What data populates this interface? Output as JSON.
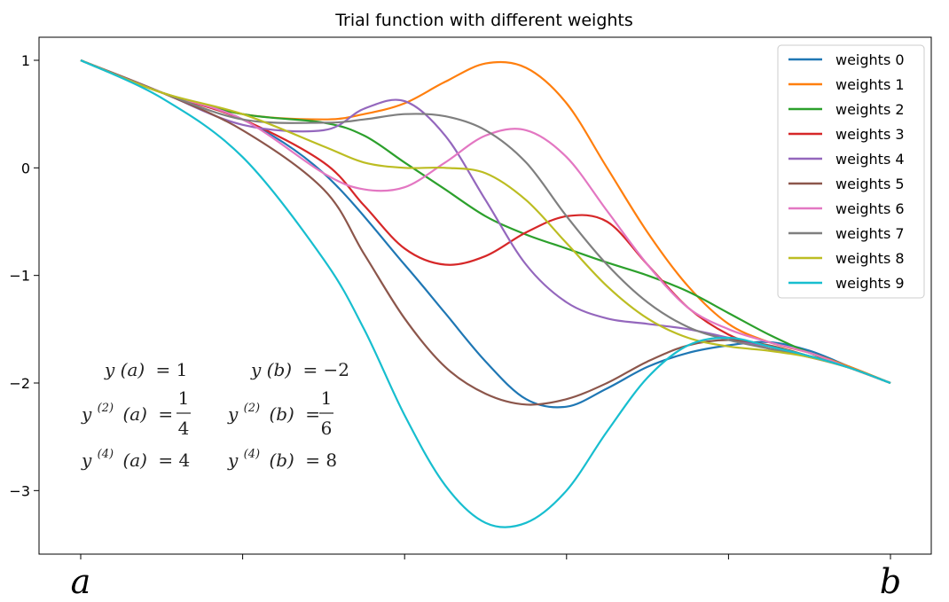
{
  "chart_data": {
    "type": "line",
    "title": "Trial function with different weights",
    "xlabel": "",
    "ylabel": "",
    "xlim": [
      0,
      1
    ],
    "ylim": [
      -3.6,
      1.2
    ],
    "y_ticks": [
      1,
      0,
      -1,
      -2,
      -3
    ],
    "y_tick_labels": [
      "1",
      "0",
      "−1",
      "−2",
      "−3"
    ],
    "x_ticks": [
      0,
      0.2,
      0.4,
      0.6,
      0.8,
      1.0
    ],
    "x_tick_labels": [
      "a",
      "",
      "",
      "",
      "",
      "b"
    ],
    "legend_position": "top-right",
    "series": [
      {
        "name": "weights 0",
        "color": "#1f77b4",
        "x": [
          0,
          0.1,
          0.2,
          0.3,
          0.4,
          0.45,
          0.5,
          0.55,
          0.6,
          0.65,
          0.7,
          0.75,
          0.8,
          0.85,
          0.9,
          0.95,
          1.0
        ],
        "y": [
          1,
          0.7,
          0.45,
          -0.05,
          -0.9,
          -1.35,
          -1.8,
          -2.15,
          -2.22,
          -2.05,
          -1.85,
          -1.72,
          -1.65,
          -1.62,
          -1.7,
          -1.85,
          -2
        ]
      },
      {
        "name": "weights 1",
        "color": "#ff7f0e",
        "x": [
          0,
          0.1,
          0.2,
          0.3,
          0.35,
          0.4,
          0.45,
          0.5,
          0.55,
          0.6,
          0.65,
          0.7,
          0.75,
          0.8,
          0.85,
          0.9,
          0.95,
          1.0
        ],
        "y": [
          1,
          0.7,
          0.5,
          0.45,
          0.5,
          0.6,
          0.8,
          0.97,
          0.93,
          0.6,
          0.0,
          -0.6,
          -1.1,
          -1.45,
          -1.62,
          -1.72,
          -1.85,
          -2
        ]
      },
      {
        "name": "weights 2",
        "color": "#2ca02c",
        "x": [
          0,
          0.1,
          0.2,
          0.3,
          0.35,
          0.4,
          0.45,
          0.5,
          0.55,
          0.6,
          0.65,
          0.7,
          0.75,
          0.8,
          0.85,
          0.9,
          0.95,
          1.0
        ],
        "y": [
          1,
          0.7,
          0.5,
          0.42,
          0.3,
          0.05,
          -0.2,
          -0.45,
          -0.62,
          -0.75,
          -0.88,
          -1.0,
          -1.15,
          -1.35,
          -1.55,
          -1.72,
          -1.86,
          -2
        ]
      },
      {
        "name": "weights 3",
        "color": "#d62728",
        "x": [
          0,
          0.1,
          0.2,
          0.3,
          0.35,
          0.4,
          0.45,
          0.5,
          0.55,
          0.6,
          0.65,
          0.7,
          0.75,
          0.8,
          0.85,
          0.9,
          0.95,
          1.0
        ],
        "y": [
          1,
          0.7,
          0.45,
          0.05,
          -0.35,
          -0.75,
          -0.9,
          -0.82,
          -0.6,
          -0.45,
          -0.5,
          -0.9,
          -1.3,
          -1.55,
          -1.68,
          -1.75,
          -1.86,
          -2
        ]
      },
      {
        "name": "weights 4",
        "color": "#9467bd",
        "x": [
          0,
          0.1,
          0.2,
          0.3,
          0.35,
          0.4,
          0.45,
          0.5,
          0.55,
          0.6,
          0.65,
          0.7,
          0.75,
          0.8,
          0.85,
          0.9,
          0.95,
          1.0
        ],
        "y": [
          1,
          0.7,
          0.4,
          0.35,
          0.55,
          0.62,
          0.3,
          -0.3,
          -0.9,
          -1.25,
          -1.4,
          -1.45,
          -1.5,
          -1.58,
          -1.68,
          -1.76,
          -1.86,
          -2
        ]
      },
      {
        "name": "weights 5",
        "color": "#8c564b",
        "x": [
          0,
          0.1,
          0.2,
          0.3,
          0.35,
          0.4,
          0.45,
          0.5,
          0.55,
          0.6,
          0.65,
          0.7,
          0.75,
          0.8,
          0.85,
          0.9,
          0.95,
          1.0
        ],
        "y": [
          1,
          0.7,
          0.35,
          -0.2,
          -0.8,
          -1.4,
          -1.85,
          -2.1,
          -2.2,
          -2.15,
          -2.0,
          -1.8,
          -1.65,
          -1.6,
          -1.65,
          -1.75,
          -1.86,
          -2
        ]
      },
      {
        "name": "weights 6",
        "color": "#e377c2",
        "x": [
          0,
          0.1,
          0.2,
          0.3,
          0.35,
          0.4,
          0.45,
          0.5,
          0.55,
          0.6,
          0.65,
          0.7,
          0.75,
          0.8,
          0.85,
          0.9,
          0.95,
          1.0
        ],
        "y": [
          1,
          0.7,
          0.45,
          -0.05,
          -0.2,
          -0.18,
          0.05,
          0.3,
          0.35,
          0.1,
          -0.4,
          -0.9,
          -1.3,
          -1.5,
          -1.62,
          -1.72,
          -1.86,
          -2
        ]
      },
      {
        "name": "weights 7",
        "color": "#7f7f7f",
        "x": [
          0,
          0.1,
          0.2,
          0.3,
          0.35,
          0.4,
          0.45,
          0.5,
          0.55,
          0.6,
          0.65,
          0.7,
          0.75,
          0.8,
          0.85,
          0.9,
          0.95,
          1.0
        ],
        "y": [
          1,
          0.7,
          0.45,
          0.42,
          0.45,
          0.5,
          0.48,
          0.35,
          0.05,
          -0.45,
          -0.9,
          -1.25,
          -1.48,
          -1.6,
          -1.68,
          -1.75,
          -1.86,
          -2
        ]
      },
      {
        "name": "weights 8",
        "color": "#bcbd22",
        "x": [
          0,
          0.1,
          0.2,
          0.3,
          0.35,
          0.4,
          0.45,
          0.5,
          0.55,
          0.6,
          0.65,
          0.7,
          0.75,
          0.8,
          0.85,
          0.9,
          0.95,
          1.0
        ],
        "y": [
          1,
          0.7,
          0.5,
          0.2,
          0.05,
          0.0,
          0.0,
          -0.05,
          -0.3,
          -0.7,
          -1.1,
          -1.4,
          -1.58,
          -1.66,
          -1.7,
          -1.76,
          -1.86,
          -2
        ]
      },
      {
        "name": "weights 9",
        "color": "#17becf",
        "x": [
          0,
          0.1,
          0.2,
          0.3,
          0.35,
          0.4,
          0.45,
          0.5,
          0.55,
          0.6,
          0.65,
          0.7,
          0.75,
          0.8,
          0.85,
          0.9,
          0.95,
          1.0
        ],
        "y": [
          1,
          0.65,
          0.1,
          -0.85,
          -1.5,
          -2.3,
          -2.95,
          -3.3,
          -3.3,
          -3.0,
          -2.45,
          -1.95,
          -1.65,
          -1.58,
          -1.66,
          -1.75,
          -1.86,
          -2
        ]
      }
    ],
    "annotations": [
      {
        "lhs": "y (a)",
        "sup": "",
        "rhs": "= 1"
      },
      {
        "lhs": "y (b)",
        "sup": "",
        "rhs": "= −2"
      },
      {
        "lhs": "y",
        "sup": "(2)",
        "arg": "(a)",
        "num": "1",
        "den": "4"
      },
      {
        "lhs": "y",
        "sup": "(2)",
        "arg": "(b)",
        "num": "1",
        "den": "6"
      },
      {
        "lhs": "y",
        "sup": "(4)",
        "arg": "(a)",
        "rhs": "= 4"
      },
      {
        "lhs": "y",
        "sup": "(4)",
        "arg": "(b)",
        "rhs": "= 8"
      }
    ]
  }
}
